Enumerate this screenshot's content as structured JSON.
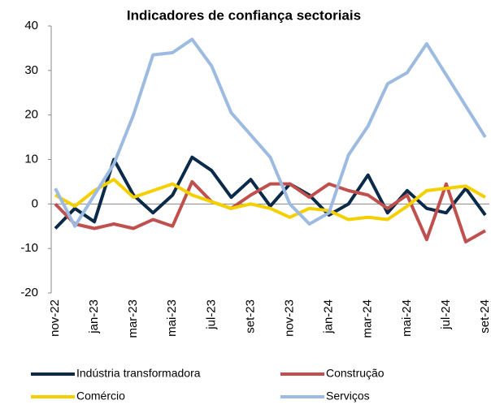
{
  "chart_data": {
    "type": "line",
    "title": "Indicadores de confiança sectoriais",
    "categories": [
      "nov-22",
      null,
      "jan-23",
      null,
      "mar-23",
      null,
      "mai-23",
      null,
      "jul-23",
      null,
      "set-23",
      null,
      "nov-23",
      null,
      "jan-24",
      null,
      "mar-24",
      null,
      "mai-24",
      null,
      "jul-24",
      null,
      "set-24"
    ],
    "series": [
      {
        "name": "Indústria transformadora",
        "color": "#0b2a4a",
        "values": [
          -5.5,
          -1,
          -4,
          10,
          2,
          -2,
          2,
          10.5,
          7.5,
          1.5,
          5.5,
          -0.5,
          4.5,
          2,
          -2.5,
          0,
          6.5,
          -2,
          3,
          -1,
          -2,
          3.5,
          -2.5
        ]
      },
      {
        "name": "Construção",
        "color": "#c0504d",
        "values": [
          0,
          -4.5,
          -5.5,
          -4.5,
          -5.5,
          -3.5,
          -5,
          5,
          0.5,
          -1,
          2,
          4.5,
          4.5,
          1.5,
          4.5,
          3,
          2,
          -1,
          2,
          -8,
          4.5,
          -8.5,
          -6
        ]
      },
      {
        "name": "Comércio",
        "color": "#f5d000",
        "values": [
          2,
          -0.5,
          3,
          5.5,
          1.5,
          3,
          4.5,
          2,
          0.5,
          -1,
          0,
          -1,
          -3,
          -1,
          -1.5,
          -3.5,
          -3,
          -3.5,
          -0.5,
          3,
          3.5,
          4,
          1.5
        ]
      },
      {
        "name": "Serviços",
        "color": "#9dbbe0",
        "values": [
          3.5,
          -5,
          2,
          9,
          20,
          33.5,
          34,
          37,
          31,
          20.5,
          15.5,
          10.5,
          0,
          -4.5,
          -2,
          11,
          17.5,
          27,
          29.5,
          36,
          29,
          22,
          15
        ]
      }
    ],
    "ylim": [
      -20,
      40
    ],
    "yticks": [
      -20,
      -10,
      0,
      10,
      20,
      30,
      40
    ],
    "grid": false
  }
}
